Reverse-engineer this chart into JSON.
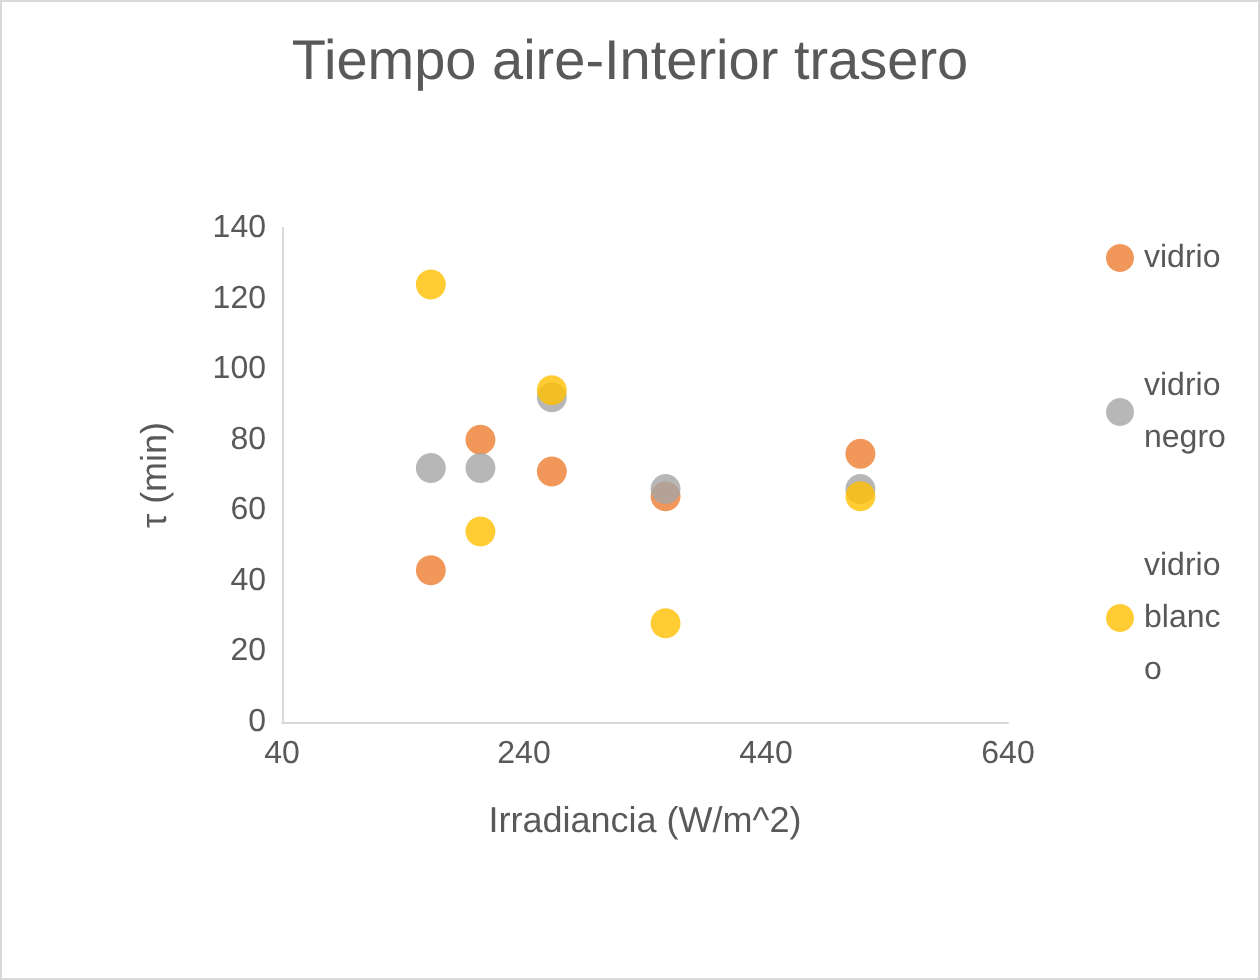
{
  "chart_data": {
    "type": "scatter",
    "title": "Tiempo aire-Interior trasero",
    "xlabel": "Irradiancia (W/m^2)",
    "ylabel": "τ (min)",
    "xlim": [
      40,
      640
    ],
    "xticks": [
      40,
      240,
      440,
      640
    ],
    "ylim": [
      0,
      140
    ],
    "yticks": [
      0,
      20,
      40,
      60,
      80,
      100,
      120,
      140
    ],
    "grid": false,
    "legend": "right",
    "marker": "circle",
    "series": [
      {
        "name": "vidrio",
        "color": "#ed7d31",
        "x": [
          163,
          204,
          263,
          357,
          518
        ],
        "values": [
          43,
          80,
          71,
          64,
          76
        ]
      },
      {
        "name": "vidrio negro",
        "color": "#a5a5a5",
        "x": [
          163,
          204,
          263,
          357,
          518
        ],
        "values": [
          72,
          72,
          92,
          66,
          66
        ]
      },
      {
        "name": "vidrio blanco",
        "color": "#ffc000",
        "x": [
          163,
          204,
          263,
          357,
          518
        ],
        "values": [
          124,
          54,
          94,
          28,
          64
        ]
      }
    ]
  }
}
